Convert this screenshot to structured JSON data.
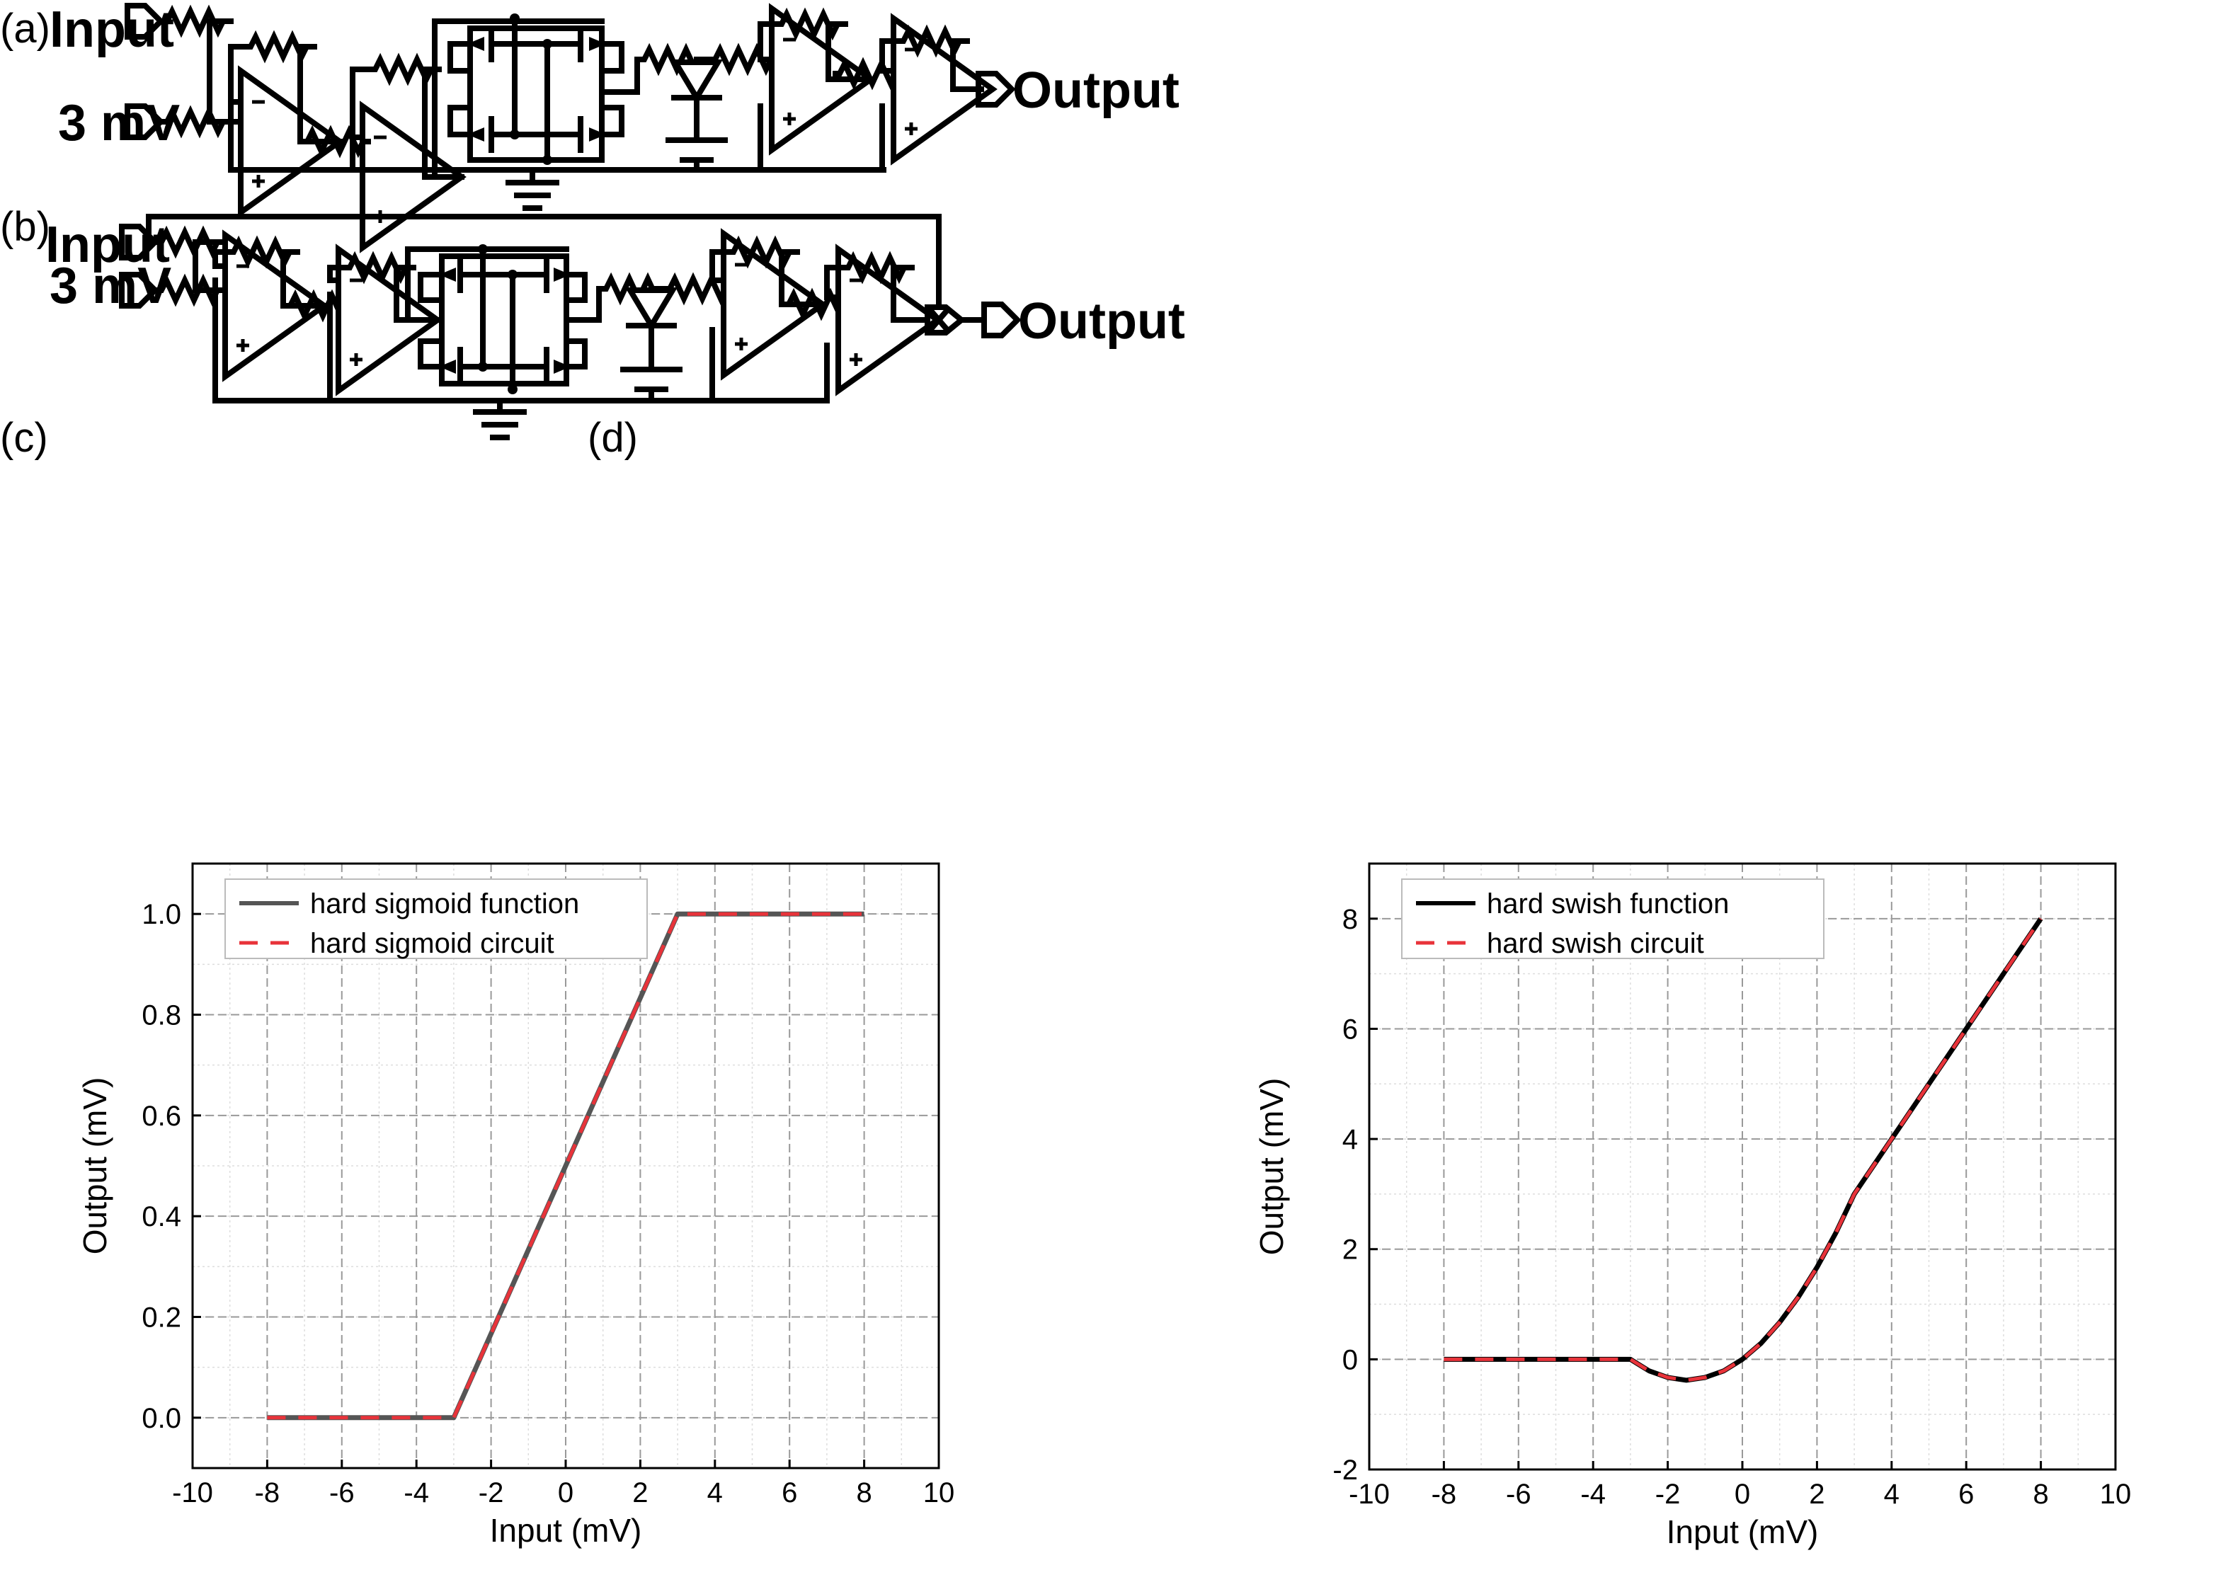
{
  "panels": {
    "a": {
      "label": "(a)",
      "inputs": [
        "Input",
        "3 mV"
      ],
      "output": "Output"
    },
    "b": {
      "label": "(b)",
      "inputs": [
        "Input",
        "3 mV"
      ],
      "output": "Output"
    },
    "c": {
      "label": "(c)"
    },
    "d": {
      "label": "(d)"
    }
  },
  "chart_data": [
    {
      "type": "line",
      "panel": "c",
      "xlabel": "Input (mV)",
      "ylabel": "Output (mV)",
      "xlim": [
        -10,
        10
      ],
      "ylim": [
        -0.1,
        1.1
      ],
      "xticks": [
        -10,
        -8,
        -6,
        -4,
        -2,
        0,
        2,
        4,
        6,
        8,
        10
      ],
      "yticks": [
        0.0,
        0.2,
        0.4,
        0.6,
        0.8,
        1.0
      ],
      "ytick_labels": [
        "0.0",
        "0.2",
        "0.4",
        "0.6",
        "0.8",
        "1.0"
      ],
      "legend": "top-left",
      "series": [
        {
          "name": "hard sigmoid function",
          "color": "#555555",
          "style": "solid",
          "x": [
            -8,
            -3,
            3,
            8
          ],
          "y": [
            0,
            0,
            1,
            1
          ]
        },
        {
          "name": "hard sigmoid circuit",
          "color": "#e8333a",
          "style": "dashed",
          "x": [
            -8,
            -3,
            3,
            8
          ],
          "y": [
            0,
            0,
            1,
            1
          ]
        }
      ]
    },
    {
      "type": "line",
      "panel": "d",
      "xlabel": "Input (mV)",
      "ylabel": "Output (mV)",
      "xlim": [
        -10,
        10
      ],
      "ylim": [
        -2,
        9
      ],
      "xticks": [
        -10,
        -8,
        -6,
        -4,
        -2,
        0,
        2,
        4,
        6,
        8,
        10
      ],
      "yticks": [
        -2,
        0,
        2,
        4,
        6,
        8
      ],
      "ytick_labels": [
        "-2",
        "0",
        "2",
        "4",
        "6",
        "8"
      ],
      "legend": "top-left",
      "series": [
        {
          "name": "hard swish function",
          "color": "#000000",
          "style": "solid",
          "x": [
            -8,
            -3,
            -2.5,
            -2,
            -1.5,
            -1,
            -0.5,
            0,
            0.5,
            1,
            1.5,
            2,
            2.5,
            3,
            4,
            5,
            6,
            7,
            8
          ],
          "y": [
            0,
            0,
            -0.21,
            -0.33,
            -0.38,
            -0.33,
            -0.21,
            0,
            0.29,
            0.67,
            1.13,
            1.67,
            2.29,
            3,
            4,
            5,
            6,
            7,
            8
          ]
        },
        {
          "name": "hard swish circuit",
          "color": "#e8333a",
          "style": "dashed",
          "x": [
            -8,
            -3,
            -2.5,
            -2,
            -1.5,
            -1,
            -0.5,
            0,
            0.5,
            1,
            1.5,
            2,
            2.5,
            3,
            4,
            5,
            6,
            7,
            8
          ],
          "y": [
            0,
            0,
            -0.21,
            -0.33,
            -0.38,
            -0.33,
            -0.21,
            0,
            0.29,
            0.67,
            1.13,
            1.67,
            2.29,
            3,
            4,
            5,
            6,
            7,
            8
          ]
        }
      ]
    }
  ]
}
